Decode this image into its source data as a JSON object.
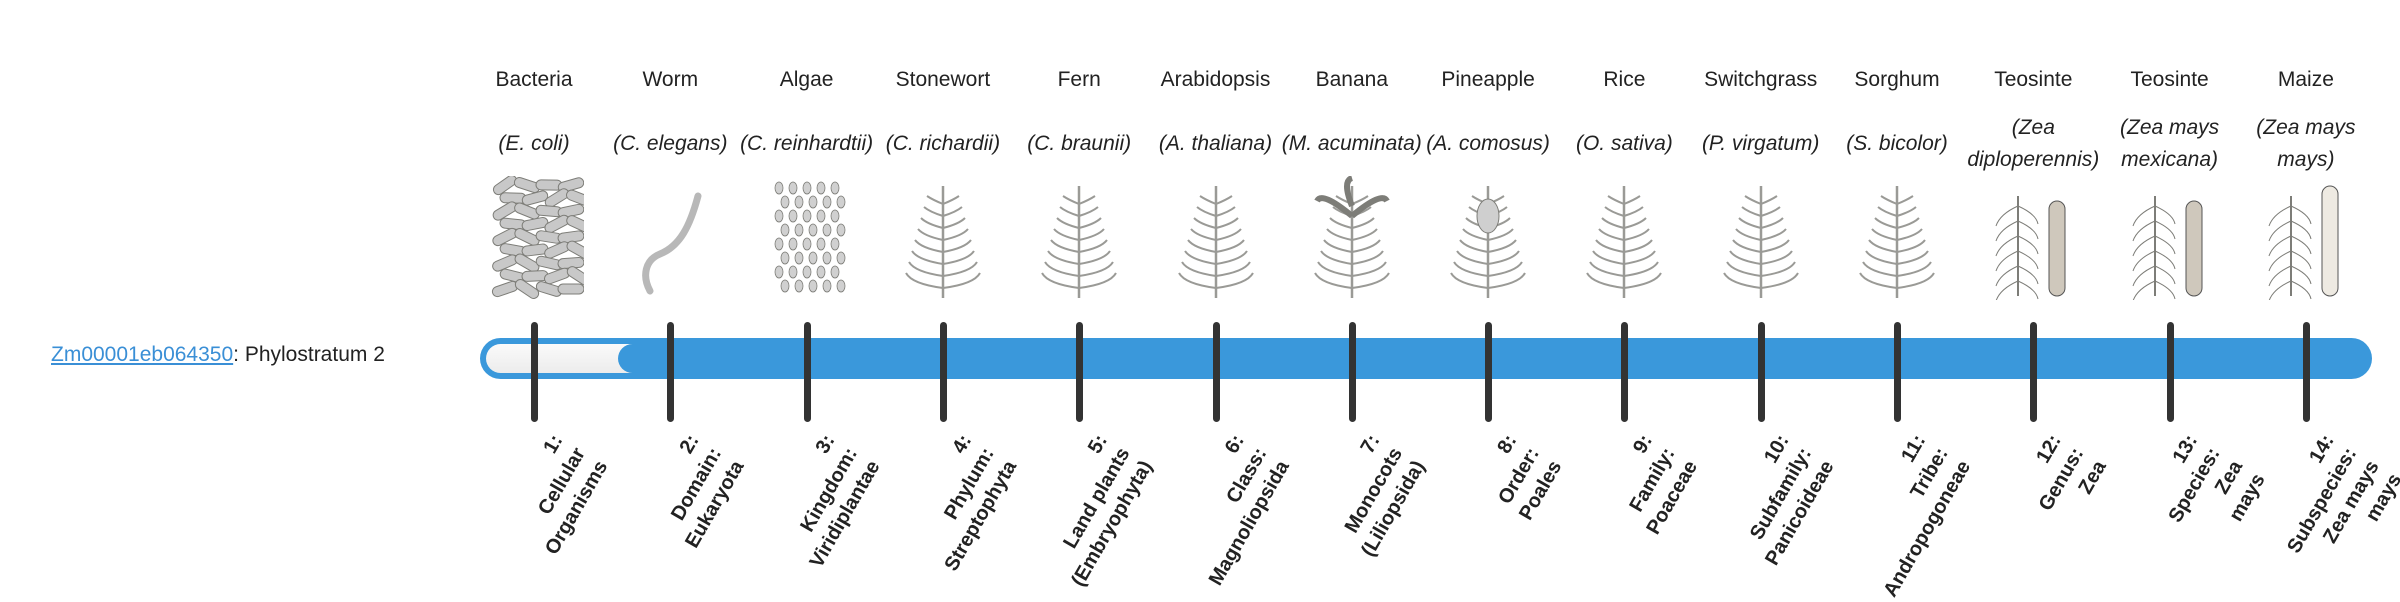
{
  "gene": {
    "id": "Zm00001eb064350",
    "suffix": ": Phylostratum 2"
  },
  "progress": {
    "phylostratum": 2,
    "total": 14
  },
  "colors": {
    "bar": "#3a98db",
    "link": "#3a8fd6",
    "tick": "#333333"
  },
  "organisms": [
    {
      "common": "Bacteria",
      "species": "(E. coli)",
      "icon": "bacteria-icon"
    },
    {
      "common": "Worm",
      "species": "(C. elegans)",
      "icon": "worm-icon"
    },
    {
      "common": "Algae",
      "species": "(C. reinhardtii)",
      "icon": "algae-icon"
    },
    {
      "common": "Stonewort",
      "species": "(C. richardii)",
      "icon": "stonewort-icon"
    },
    {
      "common": "Fern",
      "species": "(C. braunii)",
      "icon": "fern-icon"
    },
    {
      "common": "Arabidopsis",
      "species": "(A. thaliana)",
      "icon": "arabidopsis-icon"
    },
    {
      "common": "Banana",
      "species": "(M. acuminata)",
      "icon": "banana-icon"
    },
    {
      "common": "Pineapple",
      "species": "(A. comosus)",
      "icon": "pineapple-icon"
    },
    {
      "common": "Rice",
      "species": "(O. sativa)",
      "icon": "rice-icon"
    },
    {
      "common": "Switchgrass",
      "species": "(P. virgatum)",
      "icon": "switchgrass-icon"
    },
    {
      "common": "Sorghum",
      "species": "(S. bicolor)",
      "icon": "sorghum-icon"
    },
    {
      "common": "Teosinte",
      "species": "(Zea diploperennis)",
      "icon": "teosinte-icon"
    },
    {
      "common": "Teosinte",
      "species": "(Zea mays mexicana)",
      "icon": "teosinte-icon"
    },
    {
      "common": "Maize",
      "species": "(Zea mays mays)",
      "icon": "maize-icon"
    }
  ],
  "strata": [
    [
      "1:",
      "Cellular",
      "Organisms"
    ],
    [
      "2:",
      "Domain:",
      "Eukaryota"
    ],
    [
      "3:",
      "Kingdom:",
      "Viridiplantae"
    ],
    [
      "4:",
      "Phylum:",
      "Streptophyta"
    ],
    [
      "5:",
      "Land plants",
      "(Embryophyta)"
    ],
    [
      "6:",
      "Class:",
      "Magnoliopsida"
    ],
    [
      "7:",
      "Monocots",
      "(Liliopsida)"
    ],
    [
      "8:",
      "Order:",
      "Poales"
    ],
    [
      "9:",
      "Family:",
      "Poaceae"
    ],
    [
      "10:",
      "Subfamily:",
      "Panicoideae"
    ],
    [
      "11:",
      "Tribe:",
      "Andropogoneae"
    ],
    [
      "12:",
      "Genus:",
      "Zea"
    ],
    [
      "13:",
      "Species:",
      "Zea",
      "mays"
    ],
    [
      "14:",
      "Subspecies:",
      "Zea mays",
      "mays"
    ]
  ]
}
